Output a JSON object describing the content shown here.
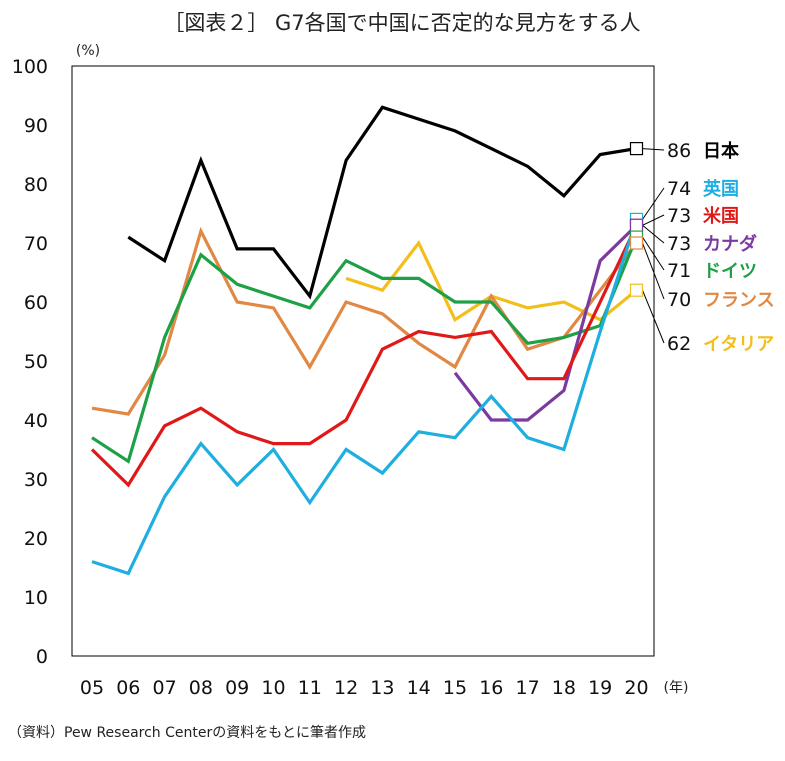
{
  "chart_data": {
    "type": "line",
    "title": "［図表２］ G7各国で中国に否定的な見方をする人",
    "y_unit": "(%)",
    "x_unit": "(年)",
    "source": "（資料）Pew Research Centerの資料をもとに筆者作成",
    "ylim": [
      0,
      100
    ],
    "y_ticks": [
      "0",
      "10",
      "20",
      "30",
      "40",
      "50",
      "60",
      "70",
      "80",
      "90",
      "100"
    ],
    "categories": [
      "05",
      "06",
      "07",
      "08",
      "09",
      "10",
      "11",
      "12",
      "13",
      "14",
      "15",
      "16",
      "17",
      "18",
      "19",
      "20"
    ],
    "grid": false,
    "legend": "right-end-labels",
    "series": [
      {
        "name": "日本",
        "color": "#000000",
        "end_label": "86",
        "values": [
          null,
          71,
          67,
          84,
          69,
          69,
          61,
          84,
          93,
          91,
          89,
          86,
          83,
          78,
          85,
          86
        ]
      },
      {
        "name": "英国",
        "color": "#1EAEE0",
        "end_label": "74",
        "values": [
          16,
          14,
          27,
          36,
          29,
          35,
          26,
          35,
          31,
          38,
          37,
          44,
          37,
          35,
          55,
          74
        ]
      },
      {
        "name": "米国",
        "color": "#E01818",
        "end_label": "73",
        "values": [
          35,
          29,
          39,
          42,
          38,
          36,
          36,
          40,
          52,
          55,
          54,
          55,
          47,
          47,
          60,
          73
        ]
      },
      {
        "name": "カナダ",
        "color": "#7B3AA0",
        "end_label": "73",
        "values": [
          null,
          null,
          null,
          null,
          null,
          null,
          null,
          null,
          null,
          null,
          48,
          40,
          40,
          45,
          67,
          73
        ]
      },
      {
        "name": "ドイツ",
        "color": "#1EA046",
        "end_label": "71",
        "values": [
          37,
          33,
          54,
          68,
          63,
          61,
          59,
          67,
          64,
          64,
          60,
          60,
          53,
          54,
          56,
          71
        ]
      },
      {
        "name": "フランス",
        "color": "#E08844",
        "end_label": "70",
        "values": [
          42,
          41,
          51,
          72,
          60,
          59,
          49,
          60,
          58,
          53,
          49,
          61,
          52,
          54,
          62,
          70
        ]
      },
      {
        "name": "イタリア",
        "color": "#F2BE1A",
        "end_label": "62",
        "values": [
          null,
          null,
          null,
          null,
          null,
          null,
          null,
          64,
          62,
          70,
          57,
          61,
          59,
          60,
          57,
          62
        ]
      }
    ]
  }
}
